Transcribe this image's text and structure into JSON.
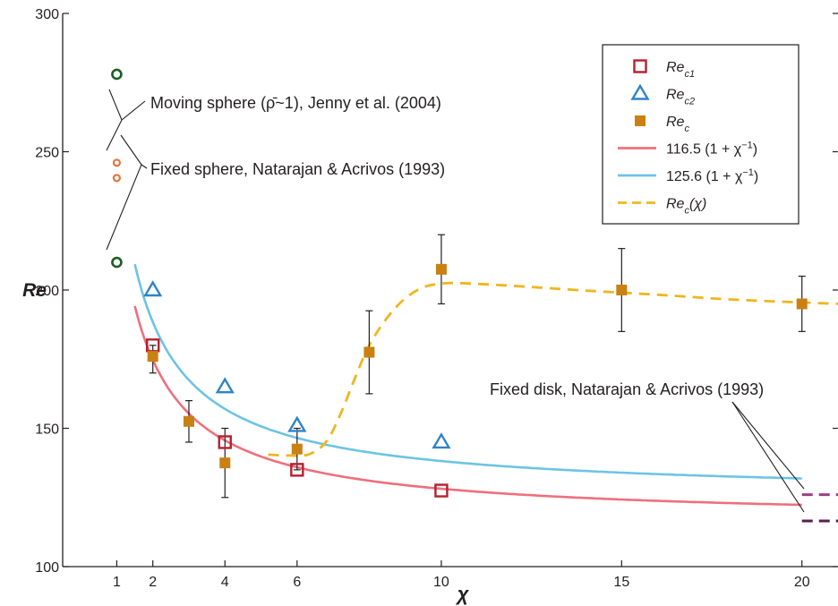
{
  "chart_data": {
    "type": "scatter",
    "xlabel": "χ",
    "ylabel": "Re",
    "xlim": [
      -0.5,
      21
    ],
    "ylim": [
      100,
      300
    ],
    "xticks": [
      1,
      2,
      4,
      6,
      10,
      15,
      20
    ],
    "yticks": [
      100,
      150,
      200,
      250,
      300
    ],
    "grid": false,
    "legend_position": "top-right",
    "colors": {
      "rec1": "#b5202e",
      "rec2": "#2f83c7",
      "rec": "#c98112",
      "fit1": "#ef6f7e",
      "fit2": "#6cc4e4",
      "recchi": "#f0b61e",
      "circle_dark": "#1b5e20",
      "circle_orange": "#e8743b",
      "disk1": "#9b3f86",
      "disk2": "#5c1f4f"
    },
    "legend": [
      {
        "key": "rec1",
        "label": "Re",
        "sub": "c1",
        "sup": "",
        "rest": ""
      },
      {
        "key": "rec2",
        "label": "Re",
        "sub": "c2",
        "sup": "",
        "rest": ""
      },
      {
        "key": "rec",
        "label": "Re",
        "sub": "c",
        "sup": "",
        "rest": ""
      },
      {
        "key": "fit1",
        "label": "116.5 (1 + χ",
        "sub": "",
        "sup": "−1",
        "rest": ")"
      },
      {
        "key": "fit2",
        "label": "125.6 (1 + χ",
        "sub": "",
        "sup": "−1",
        "rest": ")"
      },
      {
        "key": "recchi",
        "label": "Re",
        "sub": "c",
        "sup": "",
        "rest": "(χ)"
      }
    ],
    "series": [
      {
        "key": "rec1",
        "name": "Re_c1",
        "marker": "open-square",
        "points": [
          [
            2,
            180
          ],
          [
            4,
            145
          ],
          [
            6,
            135
          ],
          [
            10,
            127.5
          ]
        ]
      },
      {
        "key": "rec2",
        "name": "Re_c2",
        "marker": "open-triangle",
        "points": [
          [
            2,
            200
          ],
          [
            4,
            165
          ],
          [
            6,
            151
          ],
          [
            10,
            145
          ]
        ]
      },
      {
        "key": "rec",
        "name": "Re_c",
        "marker": "filled-square",
        "points": [
          [
            2,
            176
          ],
          [
            3,
            152.5
          ],
          [
            4,
            137.5
          ],
          [
            6,
            142.5
          ],
          [
            8,
            177.5
          ],
          [
            10,
            207.5
          ],
          [
            15,
            200
          ],
          [
            20,
            195
          ]
        ]
      }
    ],
    "error_bars": [
      {
        "x": 2,
        "low": 170,
        "high": 180
      },
      {
        "x": 3,
        "low": 145,
        "high": 160
      },
      {
        "x": 4,
        "low": 125,
        "high": 150
      },
      {
        "x": 6,
        "low": 135,
        "high": 150
      },
      {
        "x": 8,
        "low": 162.5,
        "high": 192.5
      },
      {
        "x": 10,
        "low": 195,
        "high": 220
      },
      {
        "x": 15,
        "low": 185,
        "high": 215
      },
      {
        "x": 20,
        "low": 185,
        "high": 205
      }
    ],
    "fit_curves": [
      {
        "key": "fit1",
        "a": 116.5,
        "x_range": [
          1.5,
          20
        ]
      },
      {
        "key": "fit2",
        "a": 125.6,
        "x_range": [
          1.5,
          20
        ]
      }
    ],
    "recchi_curve": [
      [
        5.2,
        140.5
      ],
      [
        5.7,
        140.2
      ],
      [
        6.3,
        140.5
      ],
      [
        6.8,
        145
      ],
      [
        7.2,
        155
      ],
      [
        7.6,
        168
      ],
      [
        8,
        180
      ],
      [
        8.5,
        190
      ],
      [
        9,
        197
      ],
      [
        9.5,
        201
      ],
      [
        10,
        202.3
      ],
      [
        10.5,
        202.5
      ],
      [
        12,
        201.5
      ],
      [
        14,
        199.8
      ],
      [
        16,
        198.3
      ],
      [
        18,
        196.6
      ],
      [
        20,
        195.5
      ],
      [
        21,
        195
      ]
    ],
    "circles": [
      {
        "x": 1,
        "y": 278,
        "tone": "circle_dark"
      },
      {
        "x": 1,
        "y": 210,
        "tone": "circle_dark"
      },
      {
        "x": 1,
        "y": 246,
        "tone": "circle_orange"
      },
      {
        "x": 1,
        "y": 240.5,
        "tone": "circle_orange"
      }
    ],
    "disk_segments": [
      {
        "y": 126,
        "tone": "disk1"
      },
      {
        "y": 116.5,
        "tone": "disk2"
      }
    ],
    "annotations": {
      "moving_sphere": "Moving sphere (ρ̄~1), Jenny et al. (2004)",
      "fixed_sphere": "Fixed sphere, Natarajan & Acrivos (1993)",
      "fixed_disk": "Fixed disk, Natarajan & Acrivos (1993)"
    }
  }
}
